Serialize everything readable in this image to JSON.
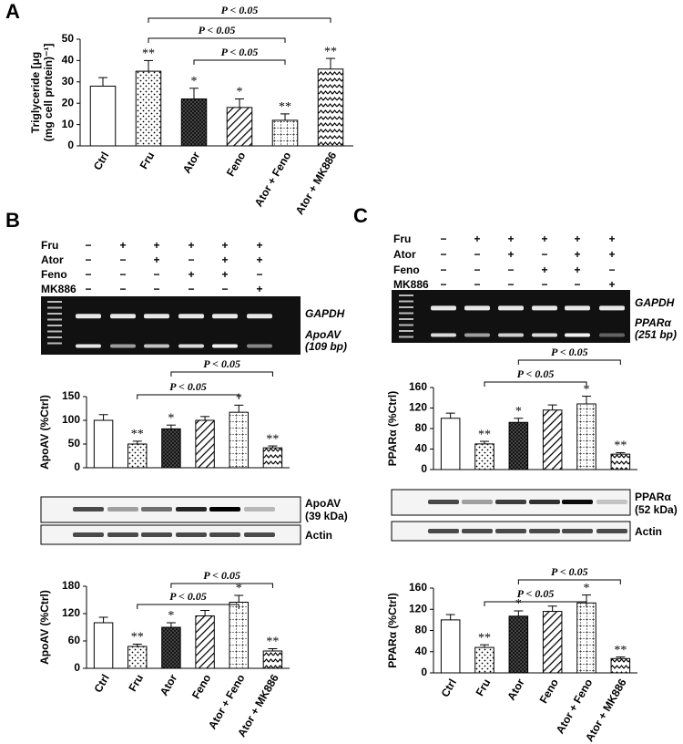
{
  "panel_labels": [
    "A",
    "B",
    "C"
  ],
  "chart_data": [
    {
      "type": "bar",
      "ylabel_lines": [
        "Triglyceride [μg",
        "(mg cell protein)⁻¹]"
      ],
      "categories": [
        "Ctrl",
        "Fru",
        "Ator",
        "Feno",
        "Ator + Feno",
        "Ator + MK886"
      ],
      "values": [
        28,
        35,
        22,
        18,
        12,
        36
      ],
      "errors": [
        4,
        5,
        5,
        4,
        3,
        5
      ],
      "annotations": [
        null,
        "**",
        "*",
        "*",
        "**",
        "**"
      ],
      "ylim": [
        0,
        50
      ],
      "yticks": [
        0,
        10,
        20,
        30,
        40,
        50
      ],
      "comparisons": [
        {
          "between": [
            1,
            5
          ],
          "label": "P < 0.05"
        },
        {
          "between": [
            1,
            4
          ],
          "label": "P < 0.05"
        },
        {
          "between": [
            2,
            4
          ],
          "label": "P < 0.05"
        }
      ]
    },
    {
      "type": "bar",
      "ylabel": "ApoAV (%Ctrl)",
      "values": [
        100,
        50,
        82,
        100,
        117,
        42
      ],
      "errors": [
        12,
        6,
        8,
        8,
        15,
        4
      ],
      "annotations": [
        null,
        "**",
        "*",
        null,
        "*",
        "**"
      ],
      "ylim": [
        0,
        150
      ],
      "yticks": [
        0,
        50,
        100,
        150
      ],
      "comparisons": [
        {
          "between": [
            1,
            4
          ],
          "label": "P < 0.05"
        },
        {
          "between": [
            2,
            5
          ],
          "label": "P < 0.05"
        }
      ]
    },
    {
      "type": "bar",
      "ylabel": "ApoAV (%Ctrl)",
      "categories": [
        "Ctrl",
        "Fru",
        "Ator",
        "Feno",
        "Ator + Feno",
        "Ator + MK886"
      ],
      "values": [
        100,
        48,
        90,
        115,
        145,
        38
      ],
      "errors": [
        12,
        5,
        10,
        12,
        15,
        5
      ],
      "annotations": [
        null,
        "**",
        "*",
        null,
        "*",
        "**"
      ],
      "ylim": [
        0,
        180
      ],
      "yticks": [
        0,
        60,
        120,
        180
      ],
      "comparisons": [
        {
          "between": [
            1,
            4
          ],
          "label": "P < 0.05"
        },
        {
          "between": [
            2,
            5
          ],
          "label": "P < 0.05"
        }
      ]
    },
    {
      "type": "bar",
      "ylabel": "PPARα (%Ctrl)",
      "values": [
        100,
        50,
        92,
        116,
        128,
        30
      ],
      "errors": [
        10,
        5,
        8,
        10,
        15,
        3
      ],
      "annotations": [
        null,
        "**",
        "*",
        null,
        "*",
        "**"
      ],
      "ylim": [
        0,
        160
      ],
      "yticks": [
        0,
        40,
        80,
        120,
        160
      ],
      "comparisons": [
        {
          "between": [
            1,
            4
          ],
          "label": "P < 0.05"
        },
        {
          "between": [
            2,
            5
          ],
          "label": "P < 0.05"
        }
      ]
    },
    {
      "type": "bar",
      "ylabel": "PPARα (%Ctrl)",
      "categories": [
        "Ctrl",
        "Fru",
        "Ator",
        "Feno",
        "Ator + Feno",
        "Ator + MK886"
      ],
      "values": [
        100,
        48,
        107,
        116,
        132,
        27
      ],
      "errors": [
        10,
        5,
        10,
        10,
        15,
        3
      ],
      "annotations": [
        null,
        "**",
        "*",
        null,
        "*",
        "**"
      ],
      "ylim": [
        0,
        160
      ],
      "yticks": [
        0,
        40,
        80,
        120,
        160
      ],
      "comparisons": [
        {
          "between": [
            1,
            4
          ],
          "label": "P < 0.05"
        },
        {
          "between": [
            2,
            5
          ],
          "label": "P < 0.05"
        }
      ]
    }
  ],
  "gels": [
    {
      "treatments": [
        {
          "label": "Fru",
          "signs": [
            "−",
            "+",
            "+",
            "+",
            "+",
            "+"
          ]
        },
        {
          "label": "Ator",
          "signs": [
            "−",
            "−",
            "+",
            "−",
            "+",
            "+"
          ]
        },
        {
          "label": "Feno",
          "signs": [
            "−",
            "−",
            "−",
            "+",
            "+",
            "−"
          ]
        },
        {
          "label": "MK886",
          "signs": [
            "−",
            "−",
            "−",
            "−",
            "−",
            "+"
          ]
        }
      ],
      "gel_labels": [
        "GAPDH",
        "ApoAV",
        "(109 bp)"
      ],
      "blot_labels": [
        "ApoAV",
        "(39 kDa)",
        "Actin"
      ]
    },
    {
      "treatments": [
        {
          "label": "Fru",
          "signs": [
            "−",
            "+",
            "+",
            "+",
            "+",
            "+"
          ]
        },
        {
          "label": "Ator",
          "signs": [
            "−",
            "−",
            "+",
            "−",
            "+",
            "+"
          ]
        },
        {
          "label": "Feno",
          "signs": [
            "−",
            "−",
            "−",
            "+",
            "+",
            "−"
          ]
        },
        {
          "label": "MK886",
          "signs": [
            "−",
            "−",
            "−",
            "−",
            "−",
            "+"
          ]
        }
      ],
      "gel_labels": [
        "GAPDH",
        "PPARα",
        "(251 bp)"
      ],
      "blot_labels": [
        "PPARα",
        "(52 kDa)",
        "Actin"
      ]
    }
  ]
}
